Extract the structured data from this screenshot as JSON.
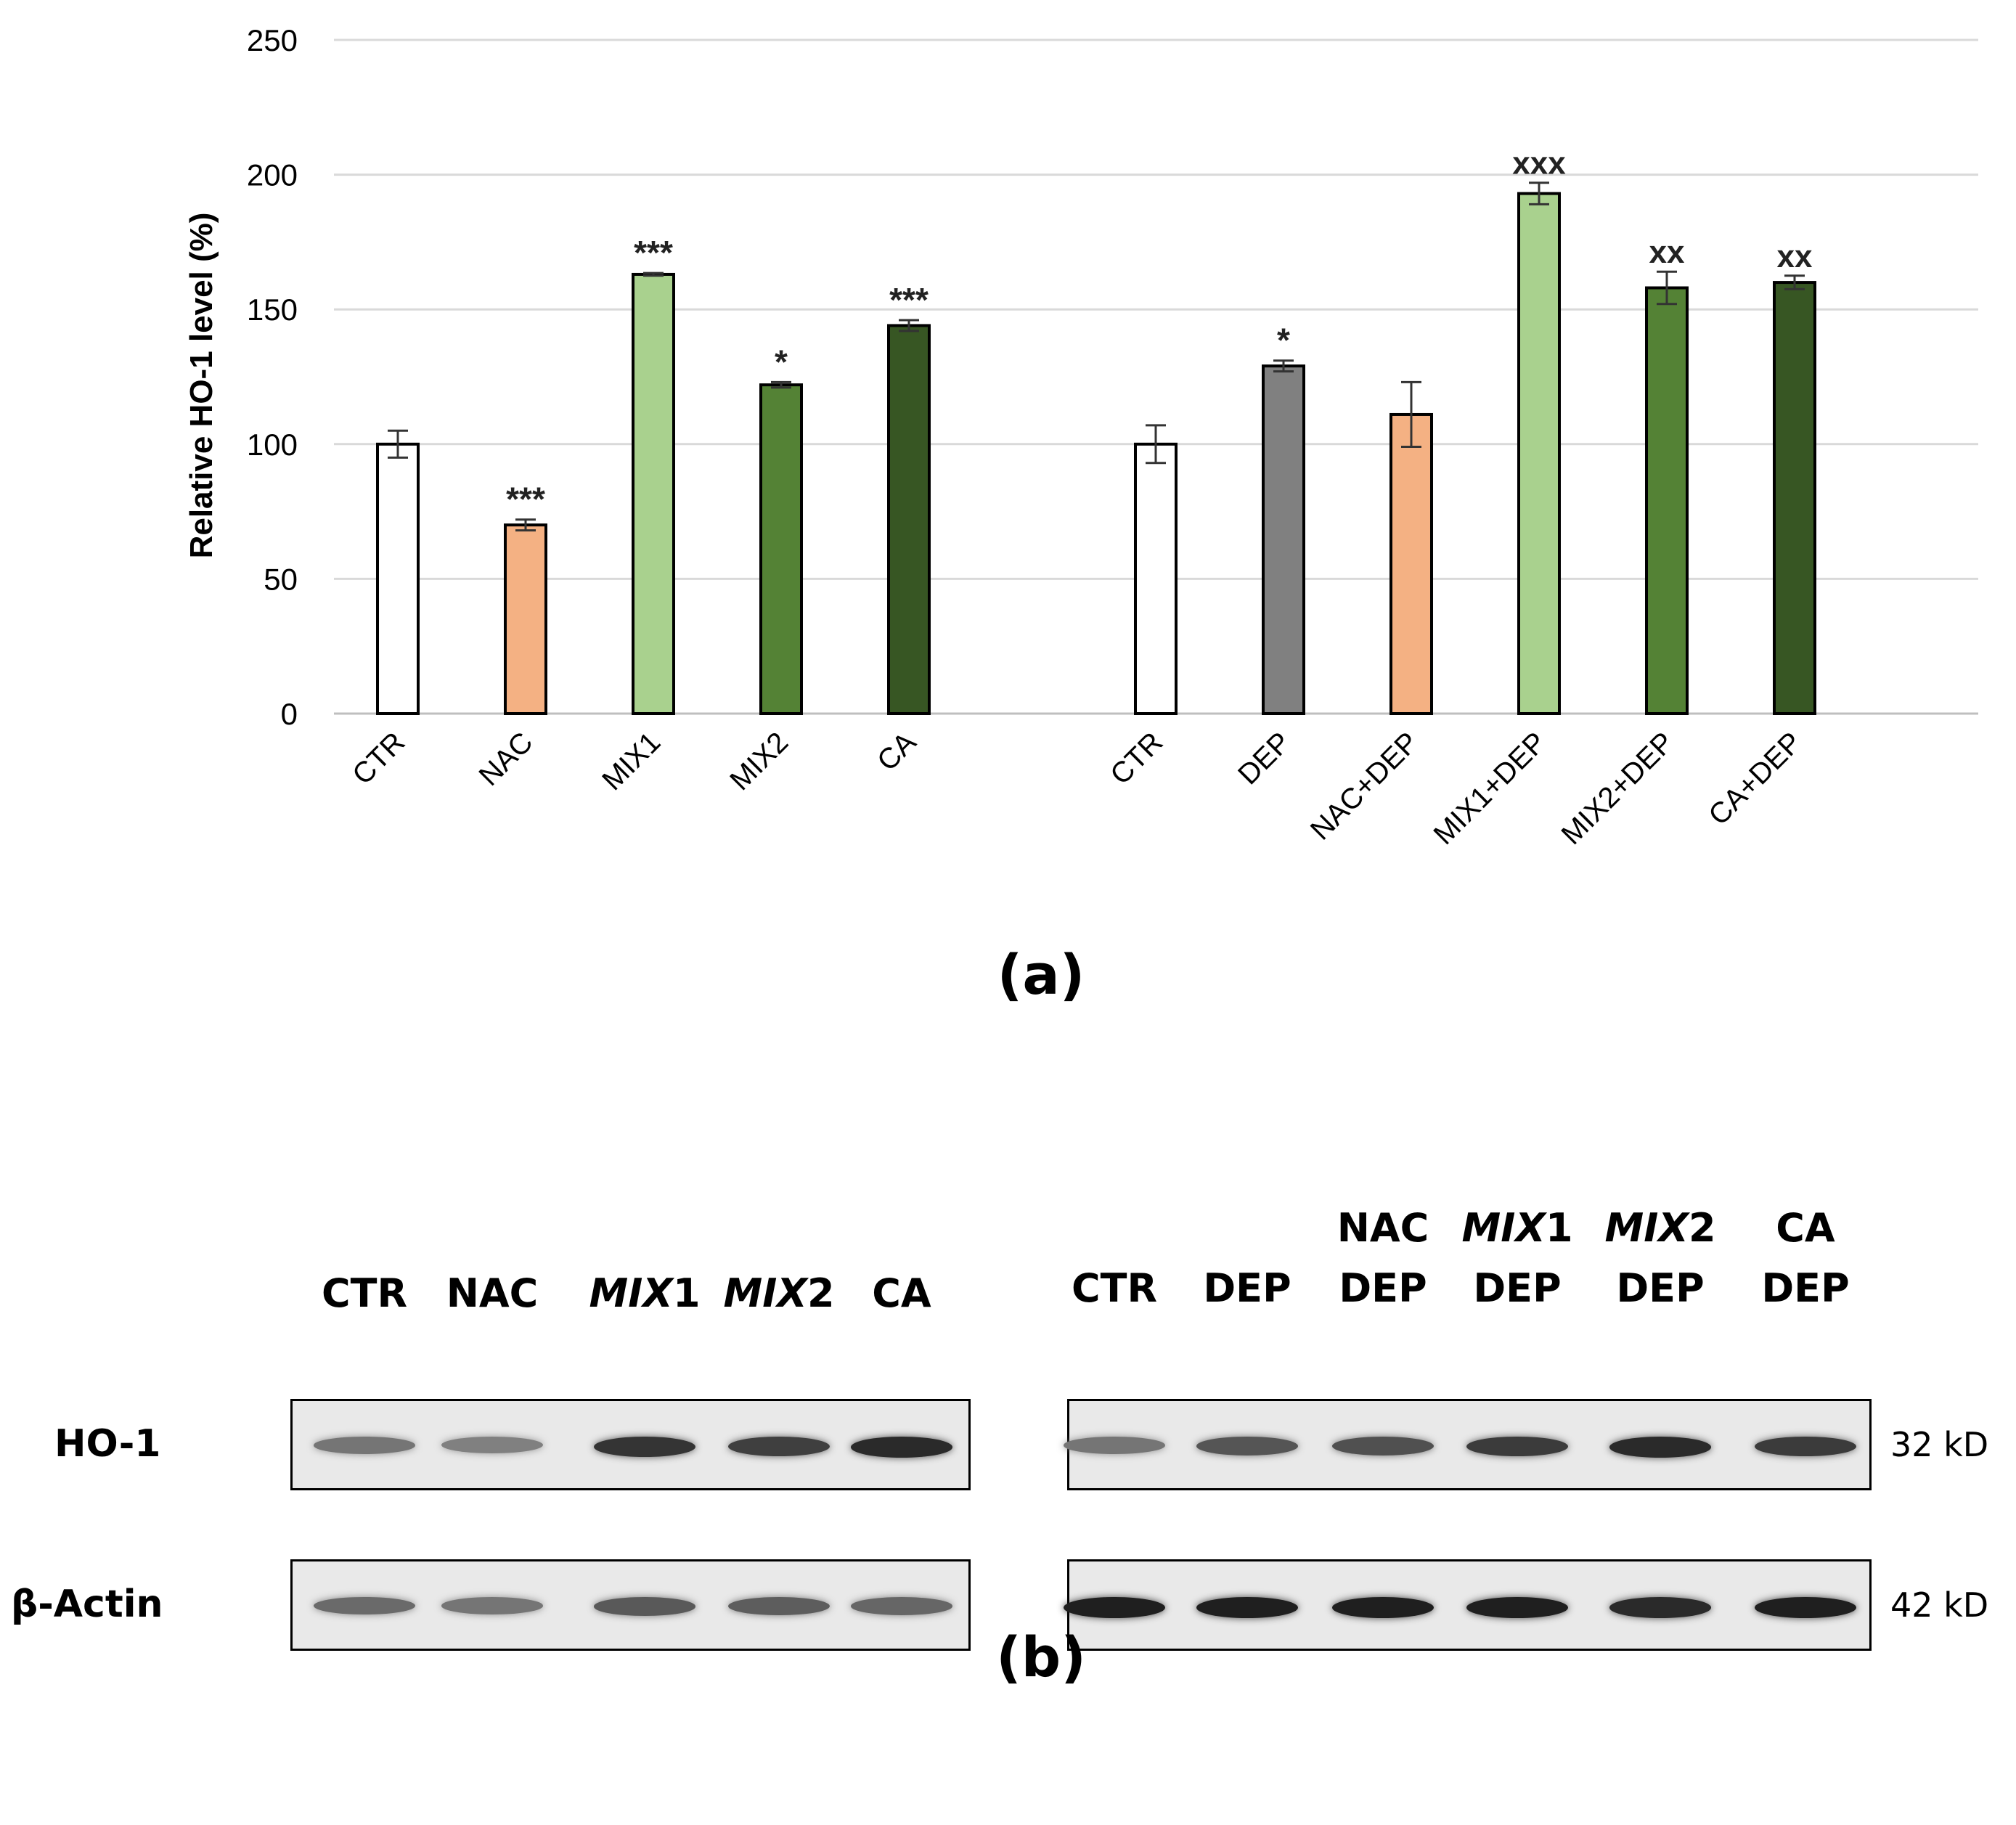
{
  "chart_data": {
    "type": "bar",
    "ylabel": "Relative HO-1 level (%)",
    "ylim": [
      0,
      250
    ],
    "yticks": [
      0,
      50,
      100,
      150,
      200,
      250
    ],
    "grid": true,
    "groups": [
      {
        "bars": [
          {
            "category": "CTR",
            "value": 100,
            "error": 5,
            "color": "#ffffff",
            "sig": ""
          },
          {
            "category": "NAC",
            "value": 70,
            "error": 2,
            "color": "#f4b183",
            "sig": "***"
          },
          {
            "category": "MIX1",
            "value": 163,
            "error": 0.5,
            "color": "#a9d18e",
            "sig": "***"
          },
          {
            "category": "MIX2",
            "value": 122,
            "error": 1,
            "color": "#548235",
            "sig": "*"
          },
          {
            "category": "CA",
            "value": 144,
            "error": 2,
            "color": "#375623",
            "sig": "***"
          }
        ]
      },
      {
        "bars": [
          {
            "category": "CTR",
            "value": 100,
            "error": 7,
            "color": "#ffffff",
            "sig": ""
          },
          {
            "category": "DEP",
            "value": 129,
            "error": 2,
            "color": "#808080",
            "sig": "*"
          },
          {
            "category": "NAC+DEP",
            "value": 111,
            "error": 12,
            "color": "#f4b183",
            "sig": ""
          },
          {
            "category": "MIX1+DEP",
            "value": 193,
            "error": 4,
            "color": "#a9d18e",
            "sig": "xxx"
          },
          {
            "category": "MIX2+DEP",
            "value": 158,
            "error": 6,
            "color": "#548235",
            "sig": "xx"
          },
          {
            "category": "CA+DEP",
            "value": 160,
            "error": 2.5,
            "color": "#375623",
            "sig": "xx"
          }
        ]
      }
    ]
  },
  "panel_a_label": "(a)",
  "panel_b_label": "(b)",
  "blot": {
    "left_headers": [
      {
        "text": "CTR"
      },
      {
        "text": "NAC"
      },
      {
        "italic": "MIX",
        "text": "1"
      },
      {
        "italic": "MIX",
        "text": "2"
      },
      {
        "text": "CA"
      }
    ],
    "right_headers": [
      {
        "line1": "",
        "text": "CTR"
      },
      {
        "line1": "",
        "text": "DEP"
      },
      {
        "line1": "NAC",
        "text": "DEP"
      },
      {
        "italic": "MIX",
        "line1": "1",
        "text": "DEP"
      },
      {
        "italic": "MIX",
        "line1": "2",
        "text": "DEP"
      },
      {
        "line1": "CA",
        "text": "DEP"
      }
    ],
    "rows": [
      {
        "label": "HO-1",
        "kd": "32 kD",
        "left_intensity": [
          0.55,
          0.5,
          0.85,
          0.8,
          0.9
        ],
        "right_intensity": [
          0.55,
          0.7,
          0.72,
          0.82,
          0.9,
          0.82
        ]
      },
      {
        "label": "β-Actin",
        "kd": "42 kD",
        "left_intensity": [
          0.6,
          0.55,
          0.68,
          0.66,
          0.62
        ],
        "right_intensity": [
          0.95,
          0.95,
          0.95,
          0.95,
          0.9,
          0.95
        ]
      }
    ]
  }
}
